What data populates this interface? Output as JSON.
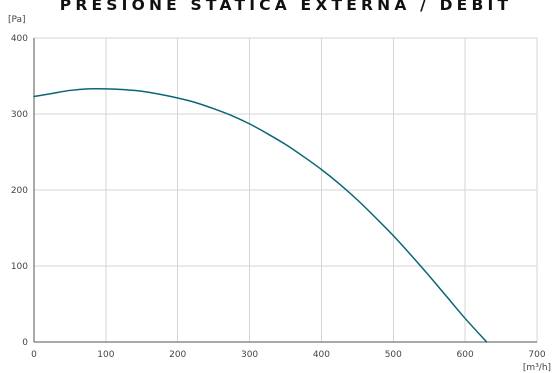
{
  "colors": {
    "curve": "#0a6675",
    "grid": "#d6d6d6",
    "axis": "#555555",
    "text": "#444444",
    "title": "#111111",
    "background": "#ffffff"
  },
  "chart_data": {
    "type": "line",
    "title": "PRESIONE STATICA EXTERNA / DEBIT",
    "xlabel": "[m³/h]",
    "ylabel": "[Pa]",
    "xlim": [
      0,
      700
    ],
    "ylim": [
      0,
      400
    ],
    "grid": true,
    "legend": "none",
    "x_ticks": [
      "0",
      "100",
      "200",
      "300",
      "400",
      "500",
      "600",
      "700"
    ],
    "y_ticks": [
      "0",
      "100",
      "200",
      "300",
      "400"
    ],
    "series": [
      {
        "x": [
          0,
          25,
          50,
          75,
          100,
          125,
          150,
          175,
          200,
          225,
          250,
          275,
          300,
          325,
          350,
          375,
          400,
          425,
          450,
          475,
          500,
          525,
          550,
          575,
          600,
          630
        ],
        "y": [
          323,
          327,
          331,
          333,
          333,
          332,
          330,
          326,
          321,
          315,
          307,
          298,
          287,
          274,
          260,
          244,
          227,
          208,
          187,
          164,
          140,
          114,
          87,
          59,
          31,
          0
        ]
      }
    ]
  }
}
